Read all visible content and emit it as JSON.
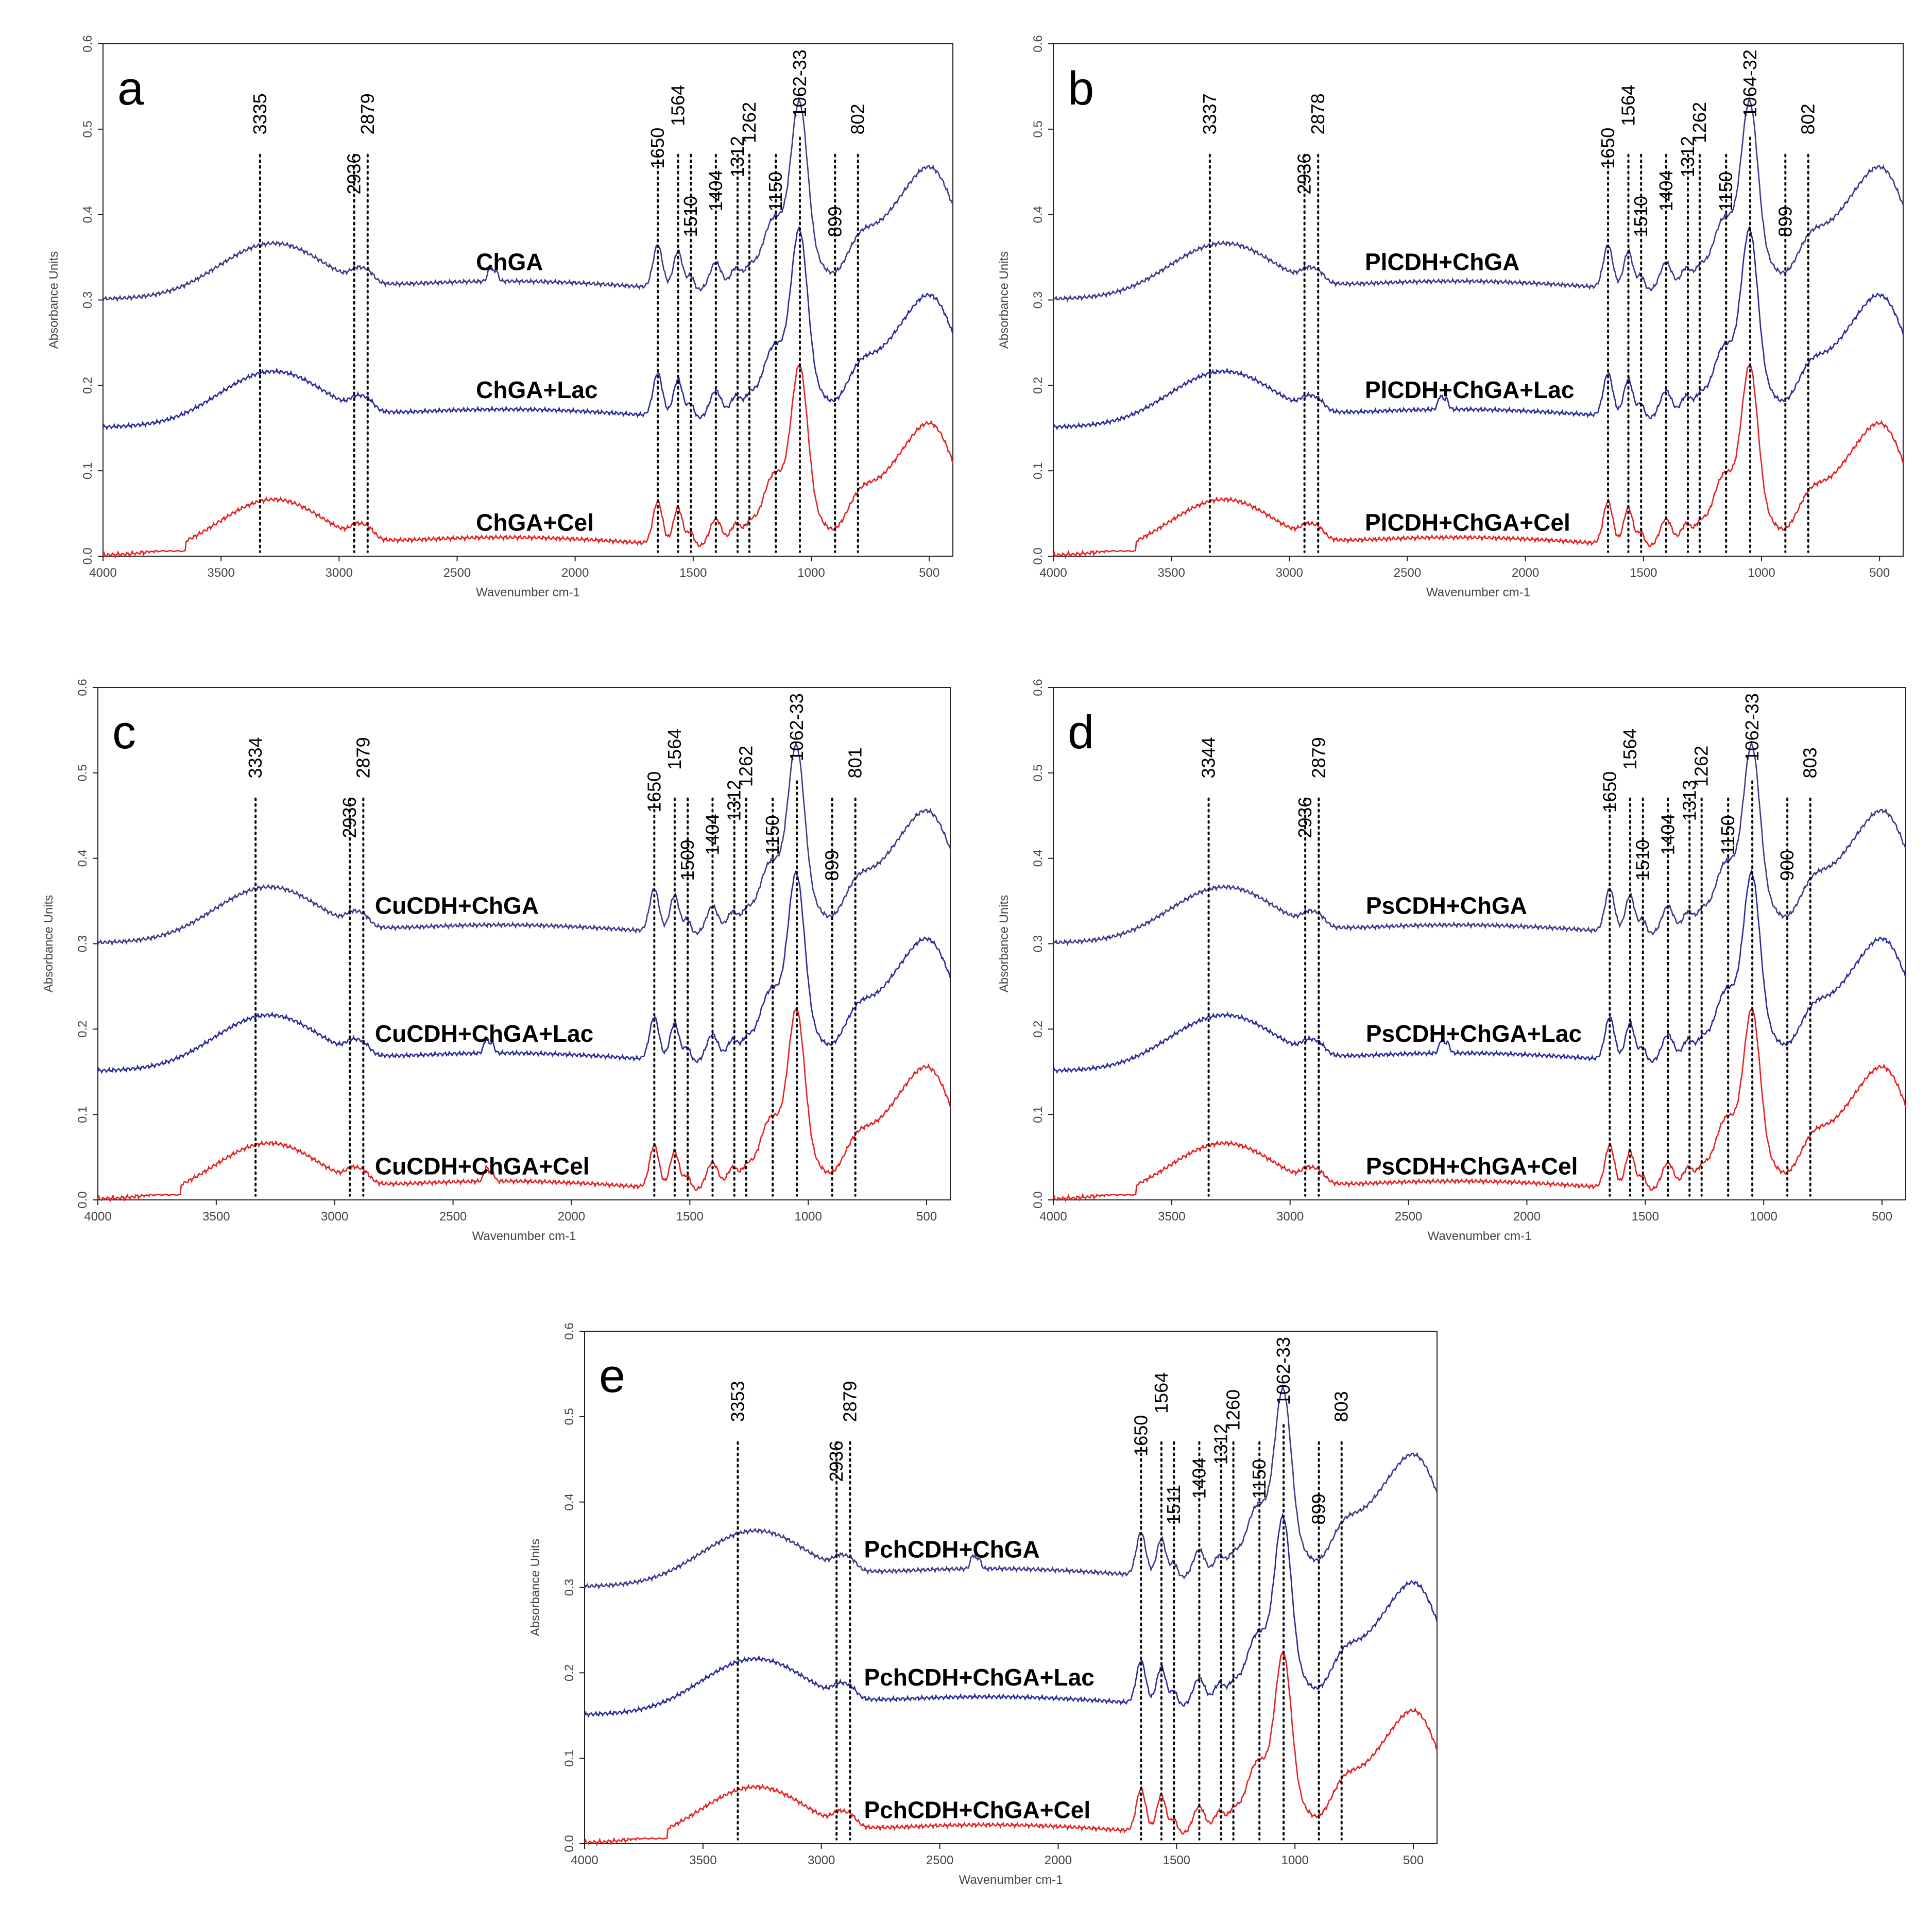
{
  "chart_data": [
    {
      "type": "line",
      "panel_label": "a",
      "xlabel": "Wavenumber cm-1",
      "ylabel": "Absorbance Units",
      "xlim": [
        4000,
        400
      ],
      "ylim": [
        0,
        0.6
      ],
      "x_ticks": [
        4000,
        3500,
        3000,
        2500,
        2000,
        1500,
        1000,
        500
      ],
      "y_ticks": [
        0.0,
        0.1,
        0.2,
        0.3,
        0.4,
        0.5,
        0.6
      ],
      "peaks": [
        "3335",
        "2936",
        "2879",
        "1650",
        "1564",
        "1510",
        "1404",
        "1312",
        "1262",
        "1150",
        "1062-33",
        "899",
        "802"
      ],
      "peak_positions": [
        3335,
        2936,
        2879,
        1650,
        1564,
        1510,
        1404,
        1312,
        1262,
        1150,
        1048,
        899,
        802
      ],
      "series": [
        {
          "name": "ChGA",
          "color": "#3a3a8c",
          "offset": 0.3,
          "cel": false,
          "co2": true,
          "label_x": 2420,
          "label_y": 0.335
        },
        {
          "name": "ChGA+Lac",
          "color": "#2a2a9a",
          "offset": 0.15,
          "cel": false,
          "co2": false,
          "label_x": 2420,
          "label_y": 0.185
        },
        {
          "name": "ChGA+Cel",
          "color": "#e62020",
          "offset": 0.0,
          "cel": true,
          "co2": false,
          "label_x": 2420,
          "label_y": 0.03
        }
      ]
    },
    {
      "type": "line",
      "panel_label": "b",
      "xlabel": "Wavenumber cm-1",
      "ylabel": "Absorbance Units",
      "xlim": [
        4000,
        400
      ],
      "ylim": [
        0,
        0.6
      ],
      "x_ticks": [
        4000,
        3500,
        3000,
        2500,
        2000,
        1500,
        1000,
        500
      ],
      "y_ticks": [
        0.0,
        0.1,
        0.2,
        0.3,
        0.4,
        0.5,
        0.6
      ],
      "peaks": [
        "3337",
        "2936",
        "2878",
        "1650",
        "1564",
        "1510",
        "1404",
        "1312",
        "1262",
        "1150",
        "1064-32",
        "899",
        "802"
      ],
      "peak_positions": [
        3337,
        2936,
        2878,
        1650,
        1564,
        1510,
        1404,
        1312,
        1262,
        1150,
        1048,
        899,
        802
      ],
      "series": [
        {
          "name": "PlCDH+ChGA",
          "color": "#3a3a8c",
          "offset": 0.3,
          "cel": false,
          "co2": false,
          "label_x": 2680,
          "label_y": 0.335
        },
        {
          "name": "PlCDH+ChGA+Lac",
          "color": "#2a2a9a",
          "offset": 0.15,
          "cel": false,
          "co2": true,
          "label_x": 2680,
          "label_y": 0.185
        },
        {
          "name": "PlCDH+ChGA+Cel",
          "color": "#e62020",
          "offset": 0.0,
          "cel": true,
          "co2": false,
          "label_x": 2680,
          "label_y": 0.03
        }
      ]
    },
    {
      "type": "line",
      "panel_label": "c",
      "xlabel": "Wavenumber cm-1",
      "ylabel": "Absorbance Units",
      "xlim": [
        4000,
        400
      ],
      "ylim": [
        0,
        0.6
      ],
      "x_ticks": [
        4000,
        3500,
        3000,
        2500,
        2000,
        1500,
        1000,
        500
      ],
      "y_ticks": [
        0.0,
        0.1,
        0.2,
        0.3,
        0.4,
        0.5,
        0.6
      ],
      "peaks": [
        "3334",
        "2936",
        "2879",
        "1650",
        "1564",
        "1509",
        "1404",
        "1312",
        "1262",
        "1150",
        "1062-33",
        "899",
        "801"
      ],
      "peak_positions": [
        3334,
        2936,
        2879,
        1650,
        1564,
        1509,
        1404,
        1312,
        1262,
        1150,
        1048,
        899,
        801
      ],
      "series": [
        {
          "name": "CuCDH+ChGA",
          "color": "#3a3a8c",
          "offset": 0.3,
          "cel": false,
          "co2": false,
          "label_x": 2830,
          "label_y": 0.335
        },
        {
          "name": "CuCDH+ChGA+Lac",
          "color": "#2a2a9a",
          "offset": 0.15,
          "cel": false,
          "co2": true,
          "label_x": 2830,
          "label_y": 0.185
        },
        {
          "name": "CuCDH+ChGA+Cel",
          "color": "#e62020",
          "offset": 0.0,
          "cel": true,
          "co2": true,
          "label_x": 2830,
          "label_y": 0.03
        }
      ]
    },
    {
      "type": "line",
      "panel_label": "d",
      "xlabel": "Wavenumber cm-1",
      "ylabel": "Absorbance Units",
      "xlim": [
        4000,
        400
      ],
      "ylim": [
        0,
        0.6
      ],
      "x_ticks": [
        4000,
        3500,
        3000,
        2500,
        2000,
        1500,
        1000,
        500
      ],
      "y_ticks": [
        0.0,
        0.1,
        0.2,
        0.3,
        0.4,
        0.5,
        0.6
      ],
      "peaks": [
        "3344",
        "2936",
        "2879",
        "1650",
        "1564",
        "1510",
        "1404",
        "1313",
        "1262",
        "1150",
        "1062-33",
        "900",
        "803"
      ],
      "peak_positions": [
        3344,
        2936,
        2879,
        1650,
        1564,
        1510,
        1404,
        1313,
        1262,
        1150,
        1048,
        900,
        803
      ],
      "series": [
        {
          "name": "PsCDH+ChGA",
          "color": "#3a3a8c",
          "offset": 0.3,
          "cel": false,
          "co2": false,
          "label_x": 2680,
          "label_y": 0.335
        },
        {
          "name": "PsCDH+ChGA+Lac",
          "color": "#2a2a9a",
          "offset": 0.15,
          "cel": false,
          "co2": true,
          "label_x": 2680,
          "label_y": 0.185
        },
        {
          "name": "PsCDH+ChGA+Cel",
          "color": "#e62020",
          "offset": 0.0,
          "cel": true,
          "co2": false,
          "label_x": 2680,
          "label_y": 0.03
        }
      ]
    },
    {
      "type": "line",
      "panel_label": "e",
      "xlabel": "Wavenumber cm-1",
      "ylabel": "Absorbance Units",
      "xlim": [
        4000,
        400
      ],
      "ylim": [
        0,
        0.6
      ],
      "x_ticks": [
        4000,
        3500,
        3000,
        2500,
        2000,
        1500,
        1000,
        500
      ],
      "y_ticks": [
        0.0,
        0.1,
        0.2,
        0.3,
        0.4,
        0.5,
        0.6
      ],
      "peaks": [
        "3353",
        "2936",
        "2879",
        "1650",
        "1564",
        "1511",
        "1404",
        "1312",
        "1260",
        "1150",
        "1062-33",
        "899",
        "803"
      ],
      "peak_positions": [
        3353,
        2936,
        2879,
        1650,
        1564,
        1511,
        1404,
        1312,
        1260,
        1150,
        1048,
        899,
        803
      ],
      "series": [
        {
          "name": "PchCDH+ChGA",
          "color": "#3a3a8c",
          "offset": 0.3,
          "cel": false,
          "co2": true,
          "label_x": 2820,
          "label_y": 0.335
        },
        {
          "name": "PchCDH+ChGA+Lac",
          "color": "#2a2a9a",
          "offset": 0.15,
          "cel": false,
          "co2": false,
          "label_x": 2820,
          "label_y": 0.185
        },
        {
          "name": "PchCDH+ChGA+Cel",
          "color": "#e62020",
          "offset": 0.0,
          "cel": true,
          "co2": false,
          "label_x": 2820,
          "label_y": 0.03
        }
      ]
    }
  ]
}
